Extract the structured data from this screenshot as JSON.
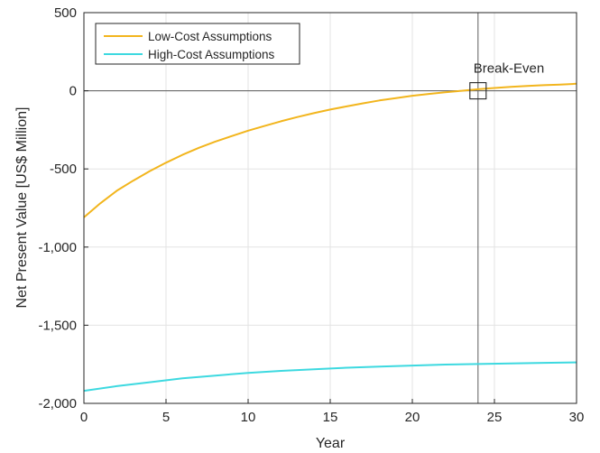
{
  "chart_data": {
    "type": "line",
    "xlabel": "Year",
    "ylabel": "Net Present Value [US$ Million]",
    "xlim": [
      0,
      30
    ],
    "ylim": [
      -2000,
      500
    ],
    "x_ticks": [
      0,
      5,
      10,
      15,
      20,
      25,
      30
    ],
    "x_tick_labels": [
      "0",
      "5",
      "10",
      "15",
      "20",
      "25",
      "30"
    ],
    "y_ticks": [
      -2000,
      -1500,
      -1000,
      -500,
      0,
      500
    ],
    "y_tick_labels": [
      "-2,000",
      "-1,500",
      "-1,000",
      "-500",
      "0",
      "500"
    ],
    "grid": true,
    "legend_position": "top-left",
    "series": [
      {
        "name": "Low-Cost Assumptions",
        "color": "#f2b51d",
        "x": [
          0,
          1,
          2,
          3,
          4,
          5,
          6,
          7,
          8,
          9,
          10,
          11,
          12,
          13,
          14,
          15,
          16,
          17,
          18,
          19,
          20,
          21,
          22,
          23,
          24,
          25,
          26,
          27,
          28,
          29,
          30
        ],
        "y": [
          -810,
          -720,
          -640,
          -575,
          -515,
          -460,
          -410,
          -365,
          -325,
          -290,
          -255,
          -225,
          -195,
          -168,
          -143,
          -120,
          -100,
          -80,
          -62,
          -47,
          -32,
          -20,
          -9,
          0,
          10,
          18,
          25,
          31,
          36,
          40,
          45
        ]
      },
      {
        "name": "High-Cost Assumptions",
        "color": "#3dd9e0",
        "x": [
          0,
          2,
          4,
          6,
          8,
          10,
          12,
          14,
          16,
          18,
          20,
          22,
          24,
          26,
          28,
          30
        ],
        "y": [
          -1920,
          -1890,
          -1865,
          -1840,
          -1822,
          -1805,
          -1792,
          -1782,
          -1772,
          -1765,
          -1758,
          -1752,
          -1748,
          -1744,
          -1741,
          -1738
        ]
      }
    ],
    "annotation": {
      "label": "Break-Even",
      "x": 24,
      "y": 0
    }
  }
}
